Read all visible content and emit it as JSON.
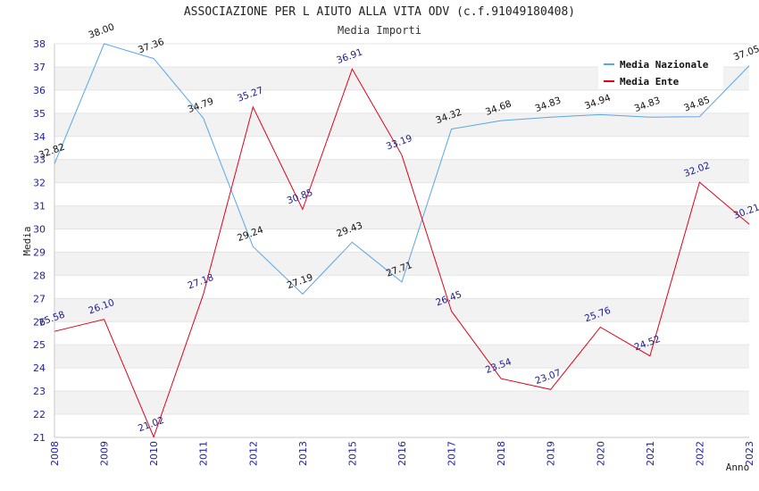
{
  "chart_data": {
    "type": "line",
    "title": "ASSOCIAZIONE PER L AIUTO ALLA VITA ODV (c.f.91049180408)",
    "subtitle": "Media Importi",
    "xlabel": "Anno",
    "ylabel": "Media",
    "categories": [
      "2008",
      "2009",
      "2010",
      "2011",
      "2012",
      "2013",
      "2015",
      "2016",
      "2017",
      "2018",
      "2019",
      "2020",
      "2021",
      "2022",
      "2023"
    ],
    "ylim": [
      21,
      38
    ],
    "yticks": [
      21,
      22,
      23,
      24,
      25,
      26,
      27,
      28,
      29,
      30,
      31,
      32,
      33,
      34,
      35,
      36,
      37,
      38
    ],
    "grid": "horizontal bands",
    "legend_position": "top-right",
    "series": [
      {
        "name": "Media Nazionale",
        "color": "#5aa6e6",
        "label_color": "#111111",
        "values": [
          32.82,
          38.0,
          37.36,
          34.79,
          29.24,
          27.19,
          29.43,
          27.71,
          34.32,
          34.68,
          34.83,
          34.94,
          34.83,
          34.85,
          37.05
        ],
        "labels": [
          "32.82",
          "38.00",
          "37.36",
          "34.79",
          "29.24",
          "27.19",
          "29.43",
          "27.71",
          "34.32",
          "34.68",
          "34.83",
          "34.94",
          "34.83",
          "34.85",
          "37.05"
        ]
      },
      {
        "name": "Media Ente",
        "color": "#e0001a",
        "label_color": "#1a1a8c",
        "values": [
          25.58,
          26.1,
          21.02,
          27.18,
          35.27,
          30.85,
          36.91,
          33.19,
          26.45,
          23.54,
          23.07,
          25.76,
          24.52,
          32.02,
          30.21
        ],
        "labels": [
          "25.58",
          "26.10",
          "21.02",
          "27.18",
          "35.27",
          "30.85",
          "36.91",
          "33.19",
          "26.45",
          "23.54",
          "23.07",
          "25.76",
          "24.52",
          "32.02",
          "30.21"
        ]
      }
    ],
    "colors": {
      "tick_label": "#1c1cb0",
      "band": "#f2f2f2",
      "axis": "#c8c8c8"
    }
  }
}
